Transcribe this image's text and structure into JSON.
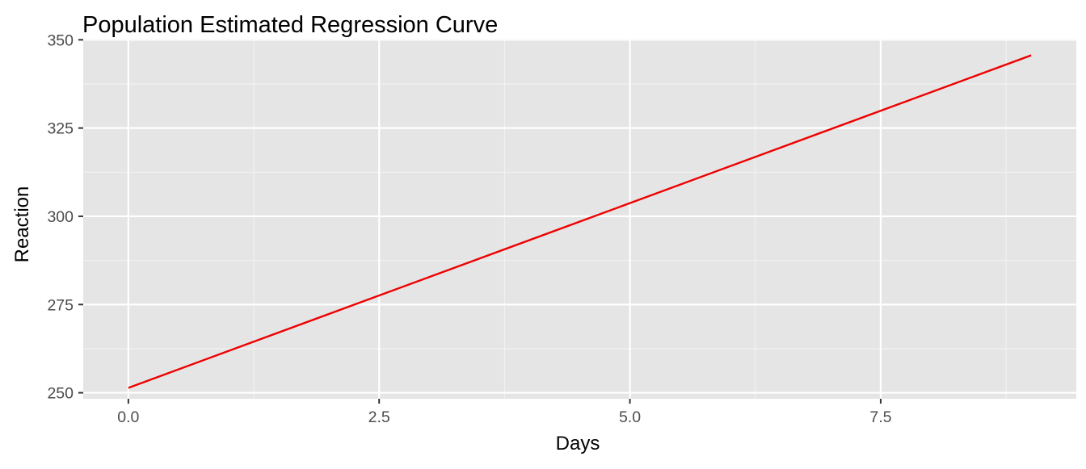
{
  "chart_data": {
    "type": "line",
    "title": "Population Estimated Regression Curve",
    "xlabel": "Days",
    "ylabel": "Reaction",
    "x_ticks": [
      0.0,
      2.5,
      5.0,
      7.5
    ],
    "x_tick_labels": [
      "0.0",
      "2.5",
      "5.0",
      "7.5"
    ],
    "y_ticks": [
      250,
      275,
      300,
      325,
      350
    ],
    "y_tick_labels": [
      "250",
      "275",
      "300",
      "325",
      "350"
    ],
    "xlim": [
      -0.45,
      9.45
    ],
    "ylim": [
      248.3,
      350.3
    ],
    "grid": true,
    "series": [
      {
        "x": [
          0,
          9
        ],
        "y": [
          251.4,
          345.6
        ],
        "color": "#ee0000"
      }
    ]
  },
  "colors": {
    "panel_background": "#e5e5e5",
    "grid_major": "#ffffff",
    "grid_minor": "#f2f2f2",
    "text": "#000000",
    "tick_text": "#4d4d4d",
    "tick_mark": "#333333"
  }
}
